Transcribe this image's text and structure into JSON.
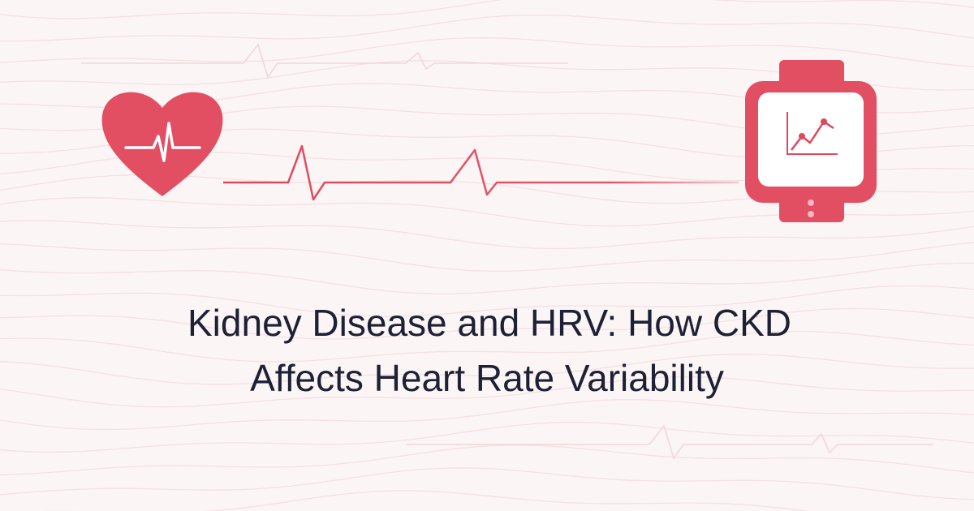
{
  "title": {
    "lines": [
      "Kidney Disease and HRV: How CKD",
      "Affects Heart Rate Variability"
    ]
  }
}
